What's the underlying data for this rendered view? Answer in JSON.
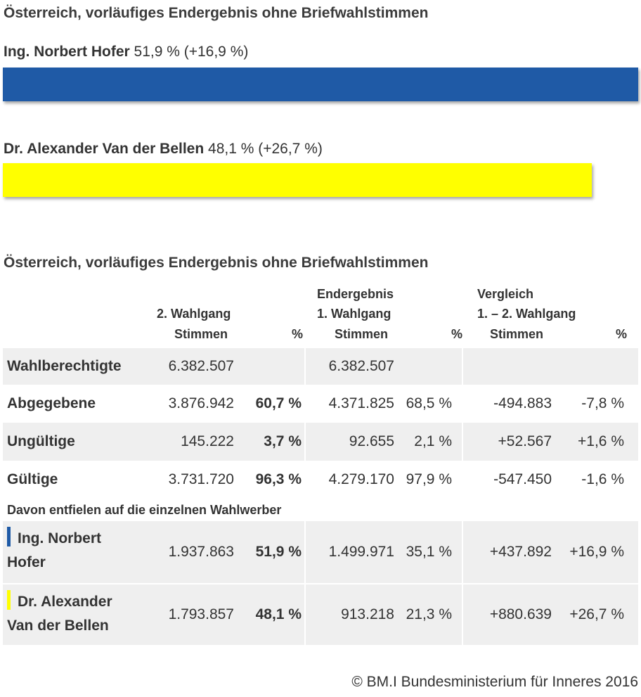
{
  "title": "Österreich, vorläufiges Endergebnis ohne Briefwahlstimmen",
  "candidates": [
    {
      "name": "Ing. Norbert Hofer",
      "result": "51,9 % (+16,9 %)",
      "share": 51.9,
      "color": "#1f5aa6"
    },
    {
      "name": "Dr. Alexander Van der Bellen",
      "result": "48,1 % (+26,7 %)",
      "share": 48.1,
      "color": "#ffff00"
    }
  ],
  "table": {
    "title": "Österreich, vorläufiges Endergebnis ohne Briefwahlstimmen",
    "headers": {
      "g2_line1": "2. Wahlgang",
      "g2_stimmen": "Stimmen",
      "g2_pct": "%",
      "g1_line0": "Endergebnis",
      "g1_line1": "1. Wahlgang",
      "g1_stimmen": "Stimmen",
      "g1_pct": "%",
      "cmp_line0": "Vergleich",
      "cmp_line1": "1. – 2. Wahlgang",
      "cmp_stimmen": "Stimmen",
      "cmp_pct": "%"
    },
    "rows": [
      {
        "label": "Wahlberechtigte",
        "v1": "6.382.507",
        "p1": "",
        "v2": "6.382.507",
        "p2": "",
        "v3": "",
        "p3": ""
      },
      {
        "label": "Abgegebene",
        "v1": "3.876.942",
        "p1": "60,7 %",
        "v2": "4.371.825",
        "p2": "68,5 %",
        "v3": "-494.883",
        "p3": "-7,8 %"
      },
      {
        "label": "Ungültige",
        "v1": "145.222",
        "p1": "3,7 %",
        "v2": "92.655",
        "p2": "2,1 %",
        "v3": "+52.567",
        "p3": "+1,6 %"
      },
      {
        "label": "Gültige",
        "v1": "3.731.720",
        "p1": "96,3 %",
        "v2": "4.279.170",
        "p2": "97,9 %",
        "v3": "-547.450",
        "p3": "-1,6 %"
      }
    ],
    "subheading": "Davon entfielen auf die einzelnen Wahlwerber",
    "candidate_rows": [
      {
        "label_line1": "Ing. Norbert",
        "label_line2": "Hofer",
        "v1": "1.937.863",
        "p1": "51,9 %",
        "v2": "1.499.971",
        "p2": "35,1 %",
        "v3": "+437.892",
        "p3": "+16,9 %",
        "color": "#1f5aa6"
      },
      {
        "label_line1": "Dr. Alexander",
        "label_line2": "Van der Bellen",
        "v1": "1.793.857",
        "p1": "48,1 %",
        "v2": "913.218",
        "p2": "21,3 %",
        "v3": "+880.639",
        "p3": "+26,7 %",
        "color": "#ffff00"
      }
    ]
  },
  "footer": "© BM.I Bundesministerium für Inneres 2016"
}
